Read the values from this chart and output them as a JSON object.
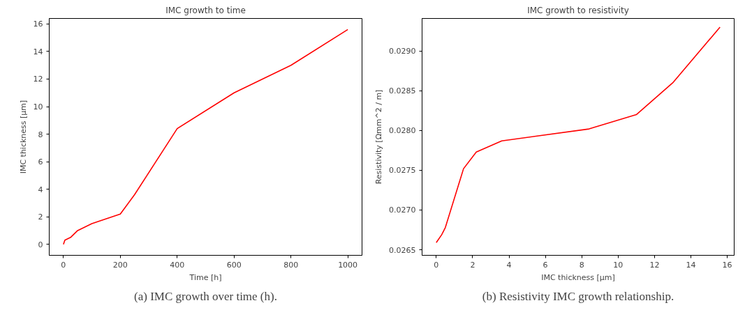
{
  "chart_data": [
    {
      "type": "line",
      "title": "IMC growth to time",
      "xlabel": "Time [h]",
      "ylabel": "IMC thickness [µm]",
      "annotations": [
        "(a) IMC growth over time (h)."
      ],
      "x": [
        0,
        5,
        25,
        50,
        100,
        200,
        250,
        400,
        600,
        800,
        1000
      ],
      "series": [
        {
          "color": "#ff0000",
          "values": [
            0,
            0.3,
            0.5,
            1.0,
            1.5,
            2.2,
            3.6,
            8.4,
            11.0,
            13.0,
            15.6
          ]
        }
      ],
      "xlim": [
        -50,
        1050
      ],
      "ylim": [
        -0.8,
        16.4
      ],
      "xticks": [
        0,
        200,
        400,
        600,
        800,
        1000
      ],
      "yticks": [
        0,
        2,
        4,
        6,
        8,
        10,
        12,
        14,
        16
      ],
      "grid": false
    },
    {
      "type": "line",
      "title": "IMC growth to resistivity",
      "xlabel": "IMC thickness [µm]",
      "ylabel": "Resistivity [Ωmm^2 / m]",
      "annotations": [
        "(b) Resistivity IMC growth relationship."
      ],
      "x": [
        0,
        0.3,
        0.5,
        1.5,
        2.2,
        3.6,
        8.4,
        11.0,
        13.0,
        15.6
      ],
      "series": [
        {
          "color": "#ff0000",
          "values": [
            0.02659,
            0.02669,
            0.02678,
            0.02752,
            0.02773,
            0.02787,
            0.02802,
            0.0282,
            0.0286,
            0.0293
          ]
        }
      ],
      "xlim": [
        -0.78,
        16.38
      ],
      "ylim": [
        0.02643,
        0.02941
      ],
      "xticks": [
        0,
        2,
        4,
        6,
        8,
        10,
        12,
        14,
        16
      ],
      "yticks": [
        {
          "value": 0.0265,
          "label": "0.0265"
        },
        {
          "value": 0.027,
          "label": "0.0270"
        },
        {
          "value": 0.0275,
          "label": "0.0275"
        },
        {
          "value": 0.028,
          "label": "0.0280"
        },
        {
          "value": 0.0285,
          "label": "0.0285"
        },
        {
          "value": 0.029,
          "label": "0.0290"
        }
      ],
      "grid": false
    }
  ]
}
